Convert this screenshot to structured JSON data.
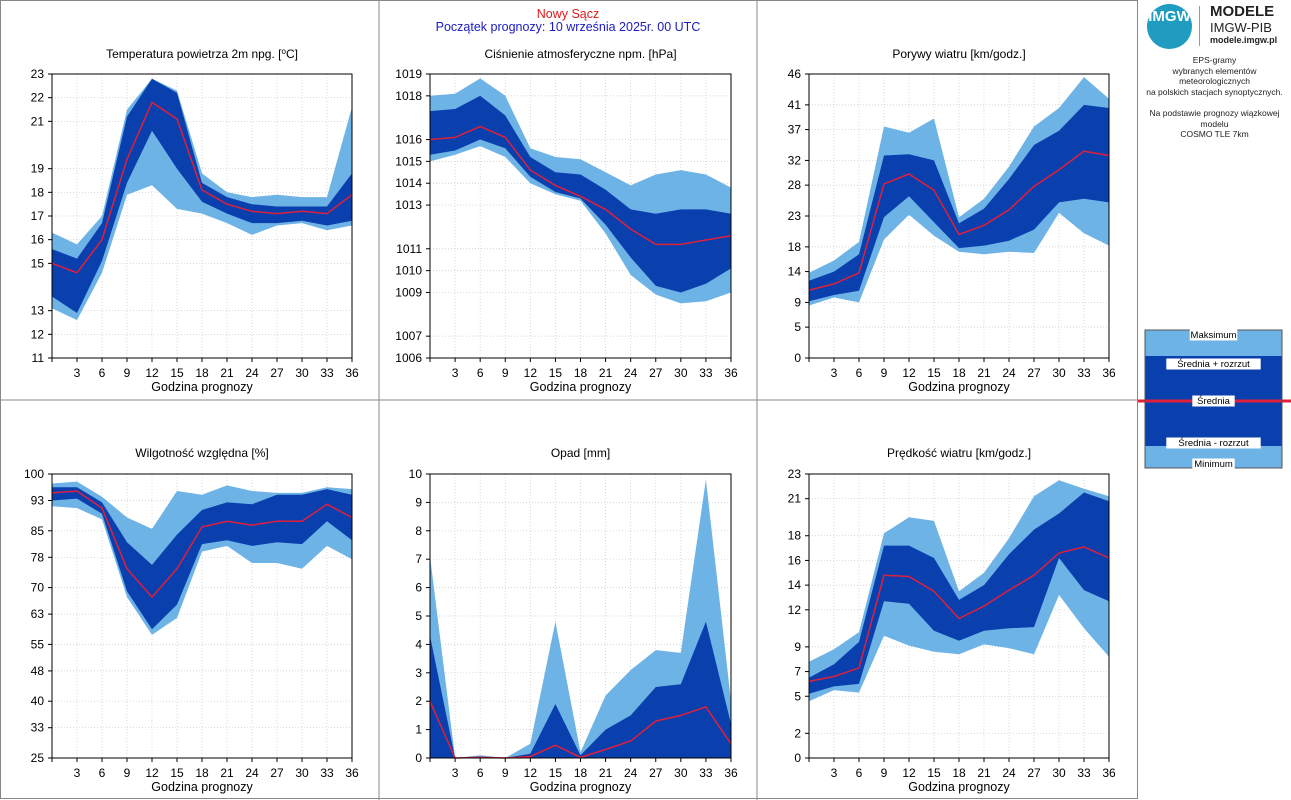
{
  "header": {
    "station": "Nowy Sącz",
    "forecast_start": "Początek prognozy: 10 września 2025r. 00 UTC"
  },
  "logo": {
    "circle_text": "IMGW",
    "line1": "MODELE",
    "line2": "IMGW-PIB",
    "line3": "modele.imgw.pl"
  },
  "description": {
    "lines1": [
      "EPS-gramy",
      "wybranych elementów meteorologicznych",
      "na polskich stacjach  synoptycznych."
    ],
    "lines2": [
      "Na podstawie prognozy wiązkowej modelu",
      "COSMO TLE 7km"
    ]
  },
  "legend": {
    "max": "Maksimum",
    "plus": "Średnia + rozrzut",
    "mean": "Średnia",
    "minus": "Średnia - rozrzut",
    "min": "Minimum"
  },
  "colors": {
    "envelope": "#6db3e6",
    "spread": "#0a3fae",
    "mean": "#e0203a",
    "grid": "#c8c8c8"
  },
  "chart_data": [
    {
      "type": "area",
      "title": "Temperatura powietrza 2m npg. [°C]",
      "title_parts": [
        "Temperatura powietrza 2m npg. [",
        "o",
        "C]"
      ],
      "xlabel": "Godzina prognozy",
      "x": [
        0,
        3,
        6,
        9,
        12,
        15,
        18,
        21,
        24,
        27,
        30,
        33,
        36
      ],
      "xlim": [
        0,
        36
      ],
      "ylim": [
        11,
        23
      ],
      "yticks": [
        11,
        12,
        13,
        15,
        16,
        17,
        18,
        19,
        21,
        22,
        23
      ],
      "series": {
        "max": [
          16.3,
          15.8,
          17.0,
          21.5,
          22.8,
          22.3,
          18.8,
          18.0,
          17.8,
          17.9,
          17.8,
          17.8,
          21.6
        ],
        "plus": [
          15.6,
          15.2,
          16.7,
          21.2,
          22.8,
          22.2,
          18.4,
          17.8,
          17.5,
          17.4,
          17.4,
          17.4,
          18.8
        ],
        "mean": [
          15.0,
          14.6,
          16.0,
          19.4,
          21.8,
          21.1,
          18.1,
          17.5,
          17.2,
          17.1,
          17.2,
          17.1,
          17.9
        ],
        "minus": [
          13.6,
          12.9,
          15.1,
          18.4,
          20.6,
          19.0,
          17.6,
          17.1,
          16.7,
          16.7,
          16.8,
          16.6,
          16.8
        ],
        "min": [
          13.1,
          12.6,
          14.6,
          17.9,
          18.3,
          17.3,
          17.1,
          16.7,
          16.2,
          16.6,
          16.7,
          16.4,
          16.6
        ]
      }
    },
    {
      "type": "area",
      "title": "Ciśnienie atmosferyczne npm. [hPa]",
      "xlabel": "Godzina prognozy",
      "x": [
        0,
        3,
        6,
        9,
        12,
        15,
        18,
        21,
        24,
        27,
        30,
        33,
        36
      ],
      "xlim": [
        0,
        36
      ],
      "ylim": [
        1006,
        1019
      ],
      "yticks": [
        1006,
        1007,
        1009,
        1010,
        1011,
        1013,
        1014,
        1015,
        1016,
        1018,
        1019
      ],
      "series": {
        "max": [
          1018.0,
          1018.1,
          1018.8,
          1018.0,
          1015.6,
          1015.2,
          1015.1,
          1014.5,
          1013.9,
          1014.4,
          1014.6,
          1014.4,
          1013.8
        ],
        "plus": [
          1017.3,
          1017.4,
          1018.0,
          1017.1,
          1015.2,
          1014.5,
          1014.4,
          1013.7,
          1012.8,
          1012.6,
          1012.8,
          1012.8,
          1012.6
        ],
        "mean": [
          1016.0,
          1016.1,
          1016.6,
          1016.1,
          1014.6,
          1013.9,
          1013.4,
          1012.8,
          1011.9,
          1011.2,
          1011.2,
          1011.4,
          1011.6
        ],
        "minus": [
          1015.3,
          1015.5,
          1016.0,
          1015.6,
          1014.3,
          1013.6,
          1013.3,
          1012.1,
          1010.6,
          1009.3,
          1009.0,
          1009.4,
          1010.1
        ],
        "min": [
          1015.0,
          1015.3,
          1015.7,
          1015.2,
          1014.0,
          1013.5,
          1013.2,
          1011.7,
          1009.8,
          1008.9,
          1008.5,
          1008.6,
          1009.0
        ]
      }
    },
    {
      "type": "area",
      "title": "Porywy wiatru [km/godz.]",
      "xlabel": "Godzina prognozy",
      "x": [
        0,
        3,
        6,
        9,
        12,
        15,
        18,
        21,
        24,
        27,
        30,
        33,
        36
      ],
      "xlim": [
        0,
        36
      ],
      "ylim": [
        0,
        46
      ],
      "yticks": [
        0,
        5,
        9,
        14,
        18,
        23,
        28,
        32,
        37,
        41,
        46
      ],
      "series": {
        "max": [
          13.8,
          15.8,
          18.8,
          37.5,
          36.5,
          38.8,
          22.8,
          25.8,
          31.0,
          37.5,
          40.5,
          45.5,
          42.0
        ],
        "plus": [
          12.5,
          14.0,
          16.8,
          32.8,
          33.0,
          32.0,
          21.8,
          24.2,
          29.0,
          34.5,
          36.8,
          41.0,
          40.5
        ],
        "mean": [
          11.0,
          12.0,
          13.8,
          28.2,
          29.8,
          27.2,
          20.0,
          21.5,
          24.0,
          27.8,
          30.5,
          33.5,
          32.8
        ],
        "minus": [
          9.2,
          10.2,
          10.9,
          22.8,
          26.2,
          22.0,
          17.8,
          18.2,
          19.0,
          20.8,
          25.2,
          25.8,
          25.2
        ],
        "min": [
          8.5,
          9.8,
          9.0,
          19.2,
          23.2,
          19.8,
          17.2,
          16.8,
          17.2,
          17.0,
          23.5,
          20.2,
          18.2
        ]
      }
    },
    {
      "type": "area",
      "title": "Wilgotność względna [%]",
      "xlabel": "Godzina prognozy",
      "x": [
        0,
        3,
        6,
        9,
        12,
        15,
        18,
        21,
        24,
        27,
        30,
        33,
        36
      ],
      "xlim": [
        0,
        36
      ],
      "ylim": [
        25,
        100
      ],
      "yticks": [
        25,
        33,
        40,
        48,
        55,
        63,
        70,
        78,
        85,
        93,
        100
      ],
      "series": {
        "max": [
          97.5,
          98.0,
          94.0,
          88.5,
          85.5,
          95.5,
          94.5,
          97.0,
          95.5,
          95.0,
          95.0,
          96.5,
          96.0
        ],
        "plus": [
          96.5,
          96.5,
          92.5,
          82.0,
          76.0,
          84.0,
          90.5,
          92.5,
          92.0,
          94.5,
          94.5,
          96.0,
          94.5
        ],
        "mean": [
          95.0,
          95.5,
          91.0,
          75.0,
          67.5,
          75.0,
          86.0,
          87.5,
          86.5,
          87.5,
          87.5,
          92.0,
          88.5
        ],
        "minus": [
          93.0,
          93.5,
          89.5,
          69.0,
          59.0,
          65.5,
          81.5,
          82.5,
          81.0,
          82.0,
          81.5,
          87.5,
          82.5
        ],
        "min": [
          91.5,
          91.0,
          88.0,
          67.5,
          57.5,
          62.0,
          79.5,
          81.0,
          76.5,
          76.5,
          75.0,
          81.0,
          77.5
        ]
      }
    },
    {
      "type": "area",
      "title": "Opad [mm]",
      "xlabel": "Godzina prognozy",
      "x": [
        0,
        3,
        6,
        9,
        12,
        15,
        18,
        21,
        24,
        27,
        30,
        33,
        36
      ],
      "xlim": [
        0,
        36
      ],
      "ylim": [
        0,
        10
      ],
      "yticks": [
        0,
        1,
        2,
        3,
        4,
        5,
        6,
        7,
        8,
        9,
        10
      ],
      "series": {
        "max": [
          7.1,
          0,
          0.1,
          0,
          0.5,
          4.8,
          0.2,
          2.2,
          3.1,
          3.8,
          3.7,
          9.8,
          2.0
        ],
        "plus": [
          4.3,
          0,
          0.05,
          0,
          0.15,
          1.9,
          0.1,
          1.0,
          1.5,
          2.5,
          2.6,
          4.8,
          1.2
        ],
        "mean": [
          2.0,
          0,
          0.02,
          0,
          0.05,
          0.45,
          0.02,
          0.3,
          0.6,
          1.3,
          1.5,
          1.8,
          0.5
        ],
        "minus": [
          0,
          0,
          0,
          0,
          0,
          0,
          0,
          0,
          0,
          0,
          0,
          0,
          0
        ],
        "min": [
          0,
          0,
          0,
          0,
          0,
          0,
          0,
          0,
          0,
          0,
          0.35,
          0,
          0
        ]
      }
    },
    {
      "type": "area",
      "title": "Prędkość wiatru [km/godz.]",
      "xlabel": "Godzina prognozy",
      "x": [
        0,
        3,
        6,
        9,
        12,
        15,
        18,
        21,
        24,
        27,
        30,
        33,
        36
      ],
      "xlim": [
        0,
        36
      ],
      "ylim": [
        0,
        23
      ],
      "yticks": [
        0,
        2,
        5,
        7,
        9,
        12,
        14,
        16,
        18,
        21,
        23
      ],
      "series": {
        "max": [
          7.8,
          8.8,
          10.2,
          18.2,
          19.5,
          19.2,
          13.5,
          15.0,
          17.8,
          21.2,
          22.5,
          21.8,
          21.2
        ],
        "plus": [
          6.5,
          7.6,
          9.4,
          17.2,
          17.2,
          16.2,
          12.8,
          14.0,
          16.5,
          18.5,
          19.8,
          21.5,
          20.8
        ],
        "mean": [
          6.2,
          6.6,
          7.3,
          14.8,
          14.7,
          13.5,
          11.3,
          12.3,
          13.6,
          14.8,
          16.6,
          17.1,
          16.2
        ],
        "minus": [
          5.2,
          5.8,
          6.0,
          12.7,
          12.5,
          10.3,
          9.5,
          10.3,
          10.5,
          10.6,
          16.2,
          13.6,
          12.7
        ],
        "min": [
          4.6,
          5.5,
          5.3,
          9.9,
          9.1,
          8.6,
          8.4,
          9.2,
          8.9,
          8.4,
          13.2,
          10.5,
          8.2
        ]
      }
    }
  ]
}
